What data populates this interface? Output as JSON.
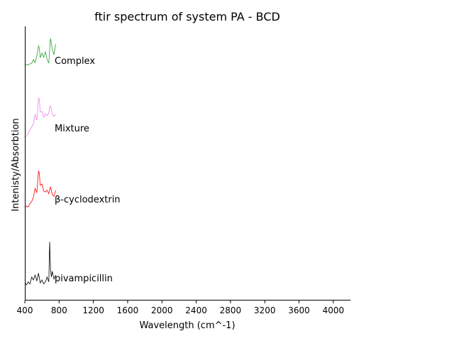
{
  "chart_data": {
    "type": "line",
    "title": "ftir spectrum of system PA - BCD",
    "xlabel": "Wavelength (cm^-1)",
    "ylabel": "Intenisty/Absorbtion",
    "xlim": [
      400,
      4200
    ],
    "xticks": [
      400,
      800,
      1200,
      1600,
      2000,
      2400,
      2800,
      3200,
      3600,
      4000
    ],
    "y_ticks_visible": false,
    "grid": false,
    "legend": "none (series labeled inline)",
    "series": [
      {
        "name": "pivampicillin",
        "color": "#000000",
        "x": [
          400,
          420,
          440,
          460,
          480,
          500,
          520,
          540,
          560,
          580,
          600,
          620,
          640,
          660,
          680,
          690,
          700,
          710,
          720,
          740,
          760
        ],
        "y": [
          0.1,
          0.06,
          0.12,
          0.08,
          0.22,
          0.16,
          0.26,
          0.14,
          0.3,
          0.1,
          0.16,
          0.08,
          0.12,
          0.22,
          0.12,
          0.95,
          0.4,
          0.22,
          0.34,
          0.18,
          0.26
        ]
      },
      {
        "name": "β-cyclodextrin",
        "color": "#ff0000",
        "x": [
          400,
          420,
          440,
          460,
          480,
          500,
          520,
          540,
          560,
          570,
          580,
          600,
          620,
          640,
          660,
          680,
          700,
          720,
          740,
          760
        ],
        "y": [
          0.05,
          0.08,
          0.06,
          0.14,
          0.18,
          0.28,
          0.48,
          0.38,
          0.88,
          0.82,
          0.55,
          0.58,
          0.42,
          0.4,
          0.44,
          0.36,
          0.52,
          0.34,
          0.3,
          0.44
        ]
      },
      {
        "name": "Mixture",
        "color": "#ee82ee",
        "x": [
          400,
          420,
          440,
          460,
          480,
          500,
          520,
          540,
          560,
          570,
          580,
          600,
          620,
          640,
          660,
          680,
          690,
          700,
          720,
          740,
          760
        ],
        "y": [
          0.02,
          0.06,
          0.12,
          0.2,
          0.26,
          0.34,
          0.55,
          0.42,
          0.92,
          0.88,
          0.6,
          0.62,
          0.48,
          0.56,
          0.52,
          0.58,
          0.72,
          0.74,
          0.56,
          0.5,
          0.55
        ]
      },
      {
        "name": "Complex",
        "color": "#2ca02c",
        "x": [
          400,
          420,
          440,
          460,
          480,
          500,
          520,
          540,
          560,
          570,
          580,
          600,
          620,
          640,
          660,
          680,
          690,
          700,
          720,
          740,
          760
        ],
        "y": [
          0.05,
          0.08,
          0.06,
          0.1,
          0.12,
          0.24,
          0.14,
          0.36,
          0.7,
          0.62,
          0.3,
          0.46,
          0.32,
          0.5,
          0.24,
          0.12,
          0.6,
          0.95,
          0.6,
          0.4,
          0.76
        ]
      }
    ]
  }
}
